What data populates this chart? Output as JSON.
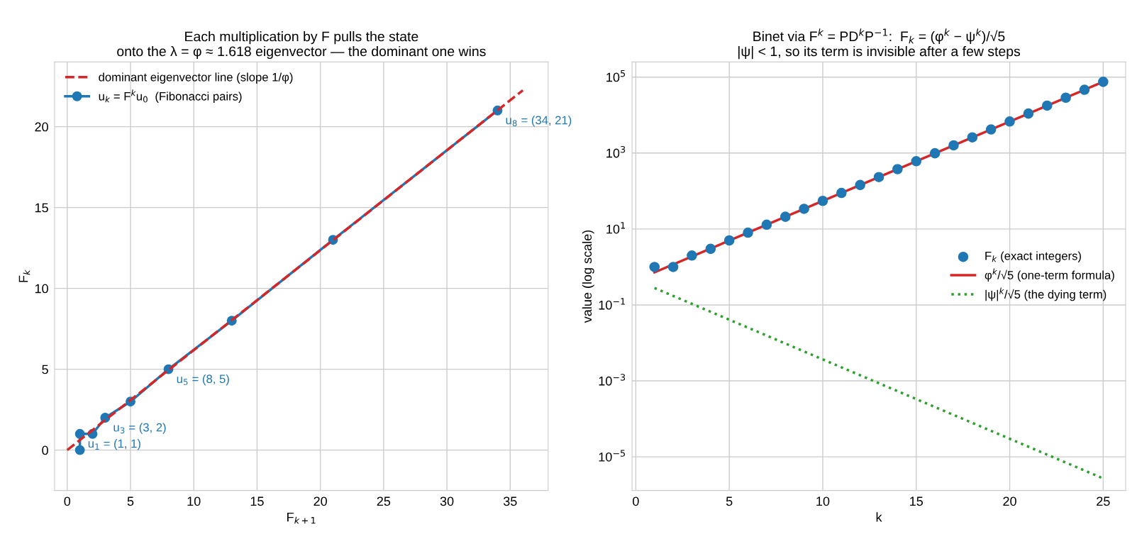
{
  "chart_data": [
    {
      "type": "line",
      "title": "Each multiplication by F pulls the state\nonto the λ = φ ≈ 1.618 eigenvector — the dominant one wins",
      "xlabel": "F$_{k+1}$",
      "ylabel": "F$_{k}$",
      "series": [
        {
          "name": "dominant eigenvector line (slope 1/φ)",
          "color": "#d62728",
          "line_style": "dashed",
          "marker": "none",
          "x": [
            0,
            36
          ],
          "values": [
            0,
            22.25
          ]
        },
        {
          "name": "u$_{k}$ = F$^{k}$u$_{0}$  (Fibonacci pairs)",
          "color": "#1f77b4",
          "line_style": "solid",
          "marker": "circle",
          "x": [
            1,
            1,
            2,
            3,
            5,
            8,
            13,
            21,
            34
          ],
          "values": [
            0,
            1,
            1,
            2,
            3,
            5,
            8,
            13,
            21
          ]
        }
      ],
      "annotations": [
        {
          "text": "u$_{1}$ = (1, 1)",
          "x": 1,
          "y": 1
        },
        {
          "text": "u$_{3}$ = (3, 2)",
          "x": 3,
          "y": 2
        },
        {
          "text": "u$_{5}$ = (8, 5)",
          "x": 8,
          "y": 5
        },
        {
          "text": "u$_{8}$ = (34, 21)",
          "x": 34,
          "y": 21
        }
      ],
      "xlim": [
        -1,
        38
      ],
      "xticks": [
        0,
        5,
        10,
        15,
        20,
        25,
        30,
        35
      ],
      "ylim": [
        -2.5,
        24
      ],
      "yticks": [
        0,
        5,
        10,
        15,
        20
      ],
      "grid": true,
      "legend": "top left"
    },
    {
      "type": "line",
      "title": "Binet via F$^{k}$ = PD$^{k}$P$^{−1}$:  F$_{k}$ = (φ$^{k}$ − ψ$^{k}$)/√5\n|ψ| < 1, so its term is invisible after a few steps",
      "xlabel": "k",
      "ylabel": "value (log scale)",
      "log": "y",
      "series": [
        {
          "name": "F$_{k}$ (exact integers)",
          "type": "scatter",
          "color": "#1f77b4",
          "marker": "circle",
          "x": [
            1,
            2,
            3,
            4,
            5,
            6,
            7,
            8,
            9,
            10,
            11,
            12,
            13,
            14,
            15,
            16,
            17,
            18,
            19,
            20,
            21,
            22,
            23,
            24,
            25
          ],
          "values": [
            1,
            1,
            2,
            3,
            5,
            8,
            13,
            21,
            34,
            55,
            89,
            144,
            233,
            377,
            610,
            987,
            1597,
            2584,
            4181,
            6765,
            10946,
            17711,
            28657,
            46368,
            75025
          ]
        },
        {
          "name": "φ$^{k}$/√5 (one-term formula)",
          "color": "#d62728",
          "line_style": "solid",
          "marker": "none",
          "x": [
            1,
            25
          ],
          "values": [
            0.72,
            75025
          ]
        },
        {
          "name": "|ψ|$^{k}$/√5 (the dying term)",
          "color": "#2ca02c",
          "line_style": "dotted",
          "marker": "none",
          "x": [
            1,
            25
          ],
          "values": [
            0.28,
            2.7e-06
          ]
        }
      ],
      "xlim": [
        -0.2,
        26.2
      ],
      "xticks": [
        0,
        5,
        10,
        15,
        20,
        25
      ],
      "ylim": [
        1.3e-06,
        250000
      ],
      "yticks": [
        {
          "value": 1e-05,
          "label": "10$^{−5}$"
        },
        {
          "value": 0.001,
          "label": "10$^{−3}$"
        },
        {
          "value": 0.1,
          "label": "10$^{−1}$"
        },
        {
          "value": 10,
          "label": "10$^{1}$"
        },
        {
          "value": 1000,
          "label": "10$^{3}$"
        },
        {
          "value": 100000,
          "label": "10$^{5}$"
        }
      ],
      "grid": true,
      "legend": "right"
    }
  ]
}
